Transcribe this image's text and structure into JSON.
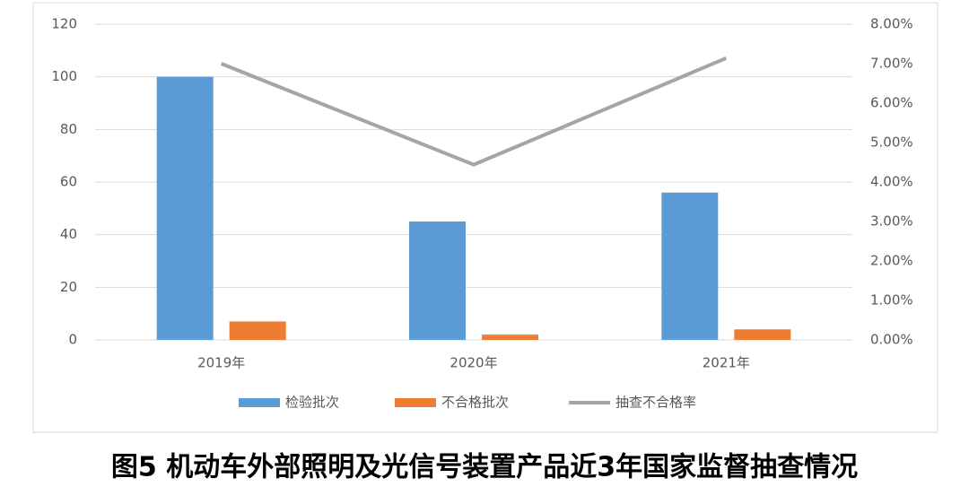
{
  "chart_data": {
    "type": "bar",
    "caption": "图5 机动车外部照明及光信号装置产品近3年国家监督抽查情况",
    "categories": [
      "2019年",
      "2020年",
      "2021年"
    ],
    "series": [
      {
        "name": "检验批次",
        "type": "bar",
        "color": "#5b9bd5",
        "values": [
          100,
          45,
          56
        ]
      },
      {
        "name": "不合格批次",
        "type": "bar",
        "color": "#ed7d31",
        "values": [
          7,
          2,
          4
        ]
      },
      {
        "name": "抽查不合格率",
        "type": "line",
        "axis": "y2",
        "color": "#a5a5a5",
        "values": [
          7.0,
          4.44,
          7.14
        ]
      }
    ],
    "ylim": [
      0,
      120
    ],
    "yticks": [
      0,
      20,
      40,
      60,
      80,
      100,
      120
    ],
    "y2lim": [
      0,
      8
    ],
    "y2ticks": [
      {
        "value": 0,
        "label": "0.00%"
      },
      {
        "value": 1,
        "label": "1.00%"
      },
      {
        "value": 2,
        "label": "2.00%"
      },
      {
        "value": 3,
        "label": "3.00%"
      },
      {
        "value": 4,
        "label": "4.00%"
      },
      {
        "value": 5,
        "label": "5.00%"
      },
      {
        "value": 6,
        "label": "6.00%"
      },
      {
        "value": 7,
        "label": "7.00%"
      },
      {
        "value": 8,
        "label": "8.00%"
      }
    ],
    "grid": true,
    "legend": "bottom"
  }
}
